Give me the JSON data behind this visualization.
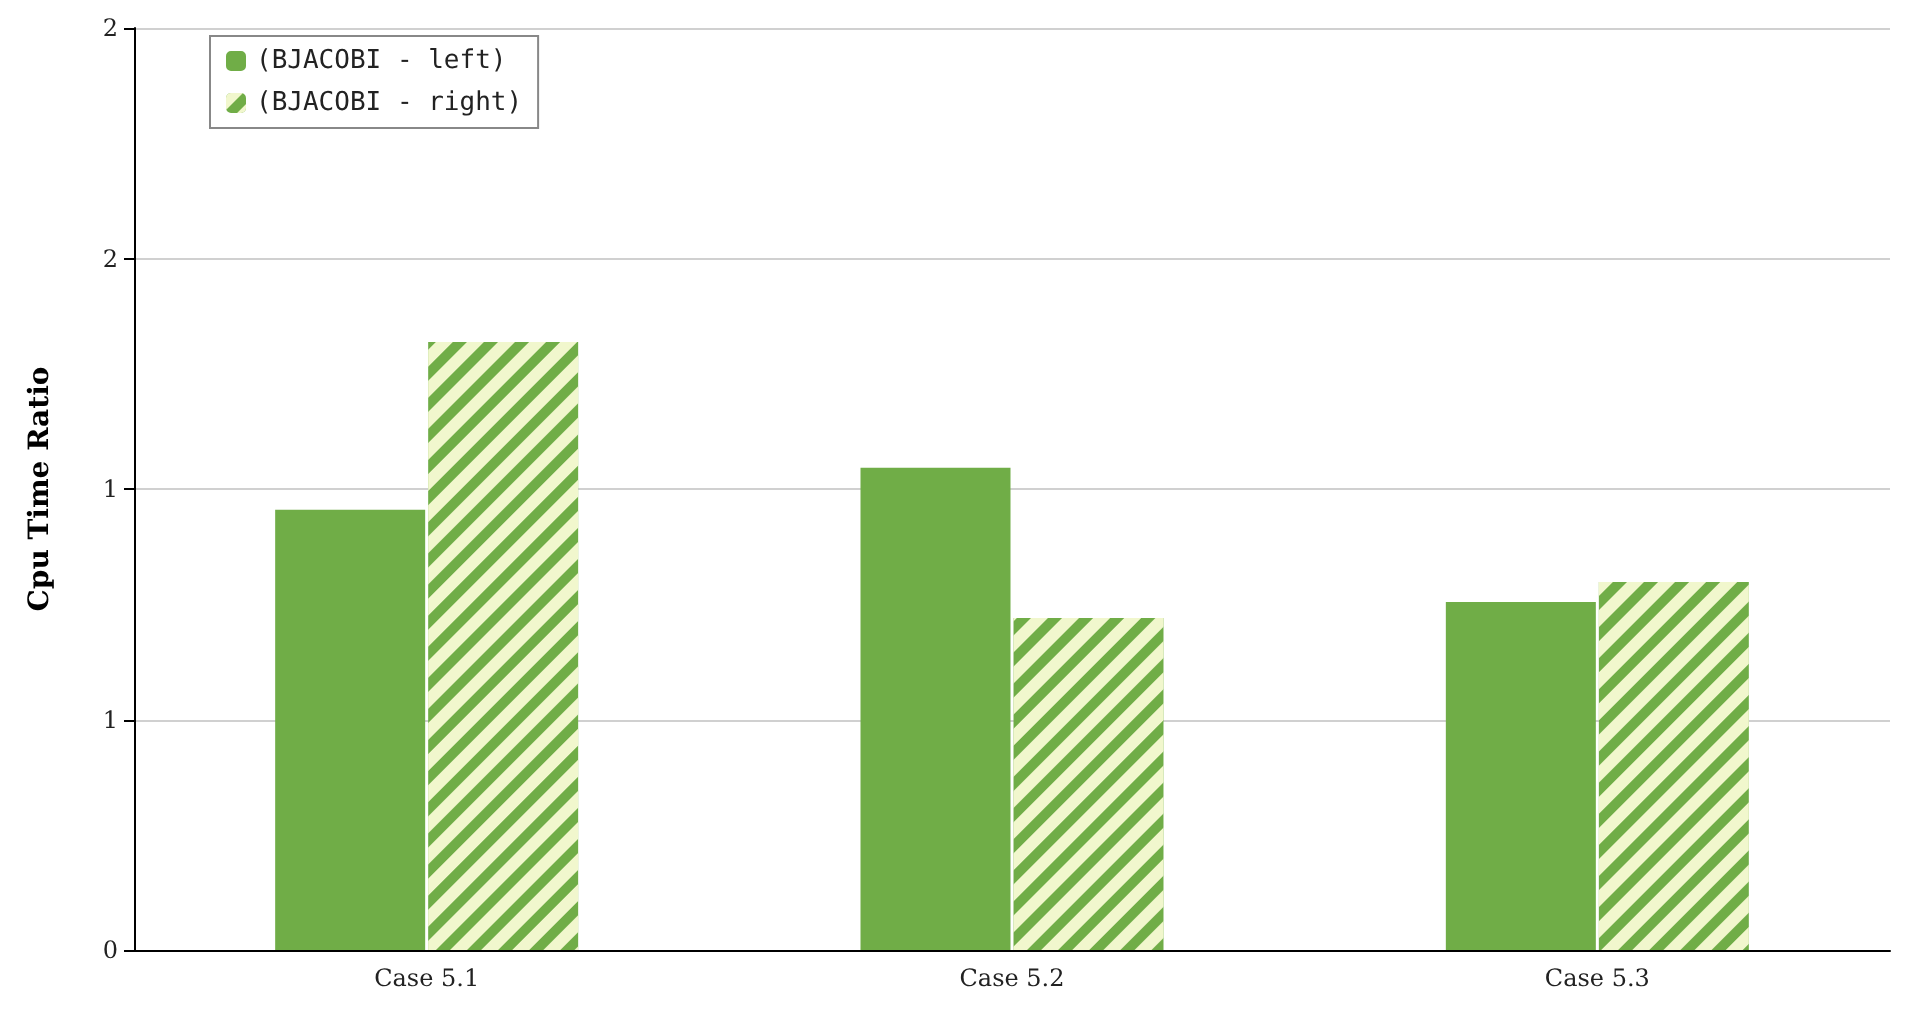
{
  "chart_data": {
    "type": "bar",
    "ylabel": "Cpu Time Ratio",
    "categories": [
      "Case 5.1",
      "Case 5.2",
      "Case 5.3"
    ],
    "series": [
      {
        "name": "(BJACOBI - left)",
        "color": "#70ad47",
        "values": [
          0.955,
          1.046,
          0.755
        ]
      },
      {
        "name": "(BJACOBI - right)",
        "color": "#70ad47",
        "values": [
          1.319,
          0.72,
          0.798
        ]
      }
    ],
    "ylim": [
      0,
      2
    ],
    "yticks": [
      0,
      {
        "value": 0.5,
        "label": "1"
      },
      {
        "value": 1,
        "label": "1"
      },
      {
        "value": 1.5,
        "label": "2"
      },
      {
        "value": 2,
        "label": "2"
      }
    ],
    "grid": "y",
    "legend": "top left"
  }
}
